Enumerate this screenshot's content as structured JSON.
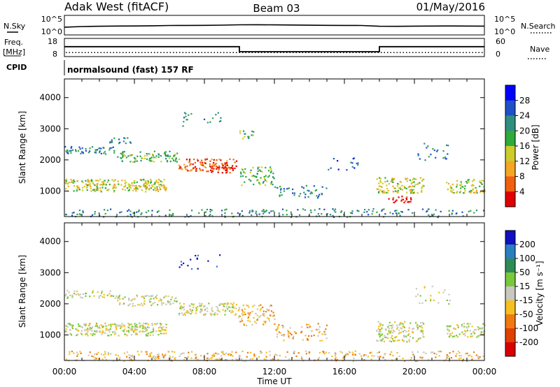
{
  "header": {
    "station": "Adak West (fitACF)",
    "beam": "Beam 03",
    "date": "01/May/2016"
  },
  "panels": {
    "nsky_label": "N.Sky",
    "nsearch_label": "N.Search",
    "nsky_ticks": [
      "10^5",
      "10^0"
    ],
    "freq_label_1": "Freq.",
    "freq_label_2": "[MHz]",
    "freq_ticks": [
      "18",
      "8"
    ],
    "nave_label": "Nave",
    "nave_ticks": [
      "60",
      "0"
    ],
    "cpid_label": "CPID",
    "cpid_text": "normalsound (fast) 157 RF"
  },
  "chart_data": [
    {
      "type": "line",
      "name": "nsky-nsearch",
      "x_range": [
        0,
        24
      ],
      "y_scale": "log",
      "ylim": [
        1,
        100000
      ],
      "x": [
        0,
        1,
        2,
        3,
        4,
        5,
        6,
        7,
        8,
        9,
        10,
        11,
        12,
        13,
        14,
        15,
        16,
        17,
        18,
        19,
        20,
        21,
        22,
        23,
        24
      ],
      "series": [
        {
          "values": [
            80,
            120,
            150,
            170,
            180,
            210,
            250,
            260,
            280,
            320,
            400,
            420,
            380,
            340,
            300,
            280,
            260,
            250,
            150,
            140,
            160,
            170,
            180,
            170,
            160
          ]
        }
      ]
    },
    {
      "type": "line",
      "name": "freq-nave",
      "x_range": [
        0,
        24
      ],
      "freq_ylim": [
        8,
        18
      ],
      "nave_ylim": [
        0,
        60
      ],
      "freq_steps": [
        [
          0,
          10,
          13.5
        ],
        [
          10,
          18,
          10.5
        ],
        [
          18,
          24,
          13.5
        ]
      ],
      "nave_value": 12
    },
    {
      "type": "heatmap",
      "name": "power",
      "xlabel": "Time UT",
      "ylabel": "Slant Range [km]",
      "x_range": [
        0,
        24
      ],
      "ylim": [
        180,
        4600
      ],
      "x_ticks": [
        "00:00",
        "04:00",
        "08:00",
        "12:00",
        "16:00",
        "20:00",
        "00:00"
      ],
      "y_ticks": [
        1000,
        2000,
        3000,
        4000
      ],
      "colorbar": {
        "label": "Power [dB]",
        "ticks": [
          "4",
          "8",
          "12",
          "16",
          "20",
          "24",
          "28"
        ],
        "colors": [
          "#0000ff",
          "#2050c8",
          "#2f8f7f",
          "#2faa3c",
          "#cccc2c",
          "#f5a623",
          "#f06010",
          "#e00000"
        ]
      },
      "scatter_regions": [
        {
          "t0": 0.0,
          "t1": 5.8,
          "r0": 1000,
          "r1": 1400,
          "level": 4,
          "density": 0.85
        },
        {
          "t0": 0.0,
          "t1": 3.0,
          "r0": 2200,
          "r1": 2450,
          "level": 2,
          "density": 0.55
        },
        {
          "t0": 3.0,
          "t1": 6.5,
          "r0": 1950,
          "r1": 2300,
          "level": 3,
          "density": 0.6
        },
        {
          "t0": 6.5,
          "t1": 9.8,
          "r0": 1650,
          "r1": 2050,
          "level": 6,
          "density": 0.7
        },
        {
          "t0": 8.2,
          "t1": 9.6,
          "r0": 1600,
          "r1": 1850,
          "level": 7,
          "density": 0.8
        },
        {
          "t0": 2.5,
          "t1": 3.8,
          "r0": 2550,
          "r1": 2750,
          "level": 2,
          "density": 0.5
        },
        {
          "t0": 9.9,
          "t1": 10.8,
          "r0": 2700,
          "r1": 2950,
          "level": 3,
          "density": 0.5
        },
        {
          "t0": 10.0,
          "t1": 12.0,
          "r0": 1200,
          "r1": 1800,
          "level": 3,
          "density": 0.45
        },
        {
          "t0": 12.0,
          "t1": 15.0,
          "r0": 800,
          "r1": 1200,
          "level": 2,
          "density": 0.3
        },
        {
          "t0": 15.0,
          "t1": 17.0,
          "r0": 1700,
          "r1": 2100,
          "level": 1,
          "density": 0.15
        },
        {
          "t0": 17.8,
          "t1": 20.5,
          "r0": 950,
          "r1": 1450,
          "level": 4,
          "density": 0.65
        },
        {
          "t0": 18.4,
          "t1": 19.8,
          "r0": 650,
          "r1": 850,
          "level": 7,
          "density": 0.7
        },
        {
          "t0": 20.0,
          "t1": 22.0,
          "r0": 2000,
          "r1": 2600,
          "level": 2,
          "density": 0.15
        },
        {
          "t0": 21.8,
          "t1": 24.0,
          "r0": 950,
          "r1": 1400,
          "level": 4,
          "density": 0.6
        },
        {
          "t0": 0.0,
          "t1": 24.0,
          "r0": 180,
          "r1": 450,
          "level": 2,
          "density": 0.25
        },
        {
          "t0": 6.5,
          "t1": 9.0,
          "r0": 3100,
          "r1": 3600,
          "level": 2,
          "density": 0.12
        }
      ]
    },
    {
      "type": "heatmap",
      "name": "velocity",
      "xlabel": "Time UT",
      "ylabel": "Slant Range [km]",
      "x_range": [
        0,
        24
      ],
      "ylim": [
        180,
        4600
      ],
      "x_ticks": [
        "00:00",
        "04:00",
        "08:00",
        "12:00",
        "16:00",
        "20:00",
        "00:00"
      ],
      "y_ticks": [
        1000,
        2000,
        3000,
        4000
      ],
      "colorbar": {
        "label": "Velocity [m s⁻¹]",
        "ticks": [
          "200",
          "100",
          "50",
          "15",
          "-15",
          "-50",
          "-100",
          "-200"
        ],
        "colors": [
          "#1010c0",
          "#2a7fc0",
          "#2e8b57",
          "#7ac83c",
          "#c8c8c0",
          "#f5c020",
          "#f07a10",
          "#e04000",
          "#d80000"
        ]
      },
      "scatter_regions": [
        {
          "t0": 0.0,
          "t1": 5.8,
          "r0": 1000,
          "r1": 1400,
          "level": 4,
          "density": 0.85
        },
        {
          "t0": 0.0,
          "t1": 3.0,
          "r0": 2200,
          "r1": 2450,
          "level": 4,
          "density": 0.5
        },
        {
          "t0": 3.0,
          "t1": 6.5,
          "r0": 1950,
          "r1": 2300,
          "level": 4,
          "density": 0.55
        },
        {
          "t0": 6.5,
          "t1": 9.8,
          "r0": 1650,
          "r1": 2050,
          "level": 4,
          "density": 0.7
        },
        {
          "t0": 9.9,
          "t1": 12.0,
          "r0": 1300,
          "r1": 2000,
          "level": 5,
          "density": 0.45
        },
        {
          "t0": 12.0,
          "t1": 15.0,
          "r0": 800,
          "r1": 1400,
          "level": 5,
          "density": 0.3
        },
        {
          "t0": 17.8,
          "t1": 20.5,
          "r0": 800,
          "r1": 1450,
          "level": 4,
          "density": 0.65
        },
        {
          "t0": 21.8,
          "t1": 24.0,
          "r0": 950,
          "r1": 1400,
          "level": 4,
          "density": 0.6
        },
        {
          "t0": 0.0,
          "t1": 24.0,
          "r0": 180,
          "r1": 500,
          "level": 5,
          "density": 0.35
        },
        {
          "t0": 6.5,
          "t1": 9.0,
          "r0": 3100,
          "r1": 3600,
          "level": 0,
          "density": 0.1
        },
        {
          "t0": 20.0,
          "t1": 22.0,
          "r0": 2000,
          "r1": 2600,
          "level": 4,
          "density": 0.15
        }
      ]
    }
  ]
}
